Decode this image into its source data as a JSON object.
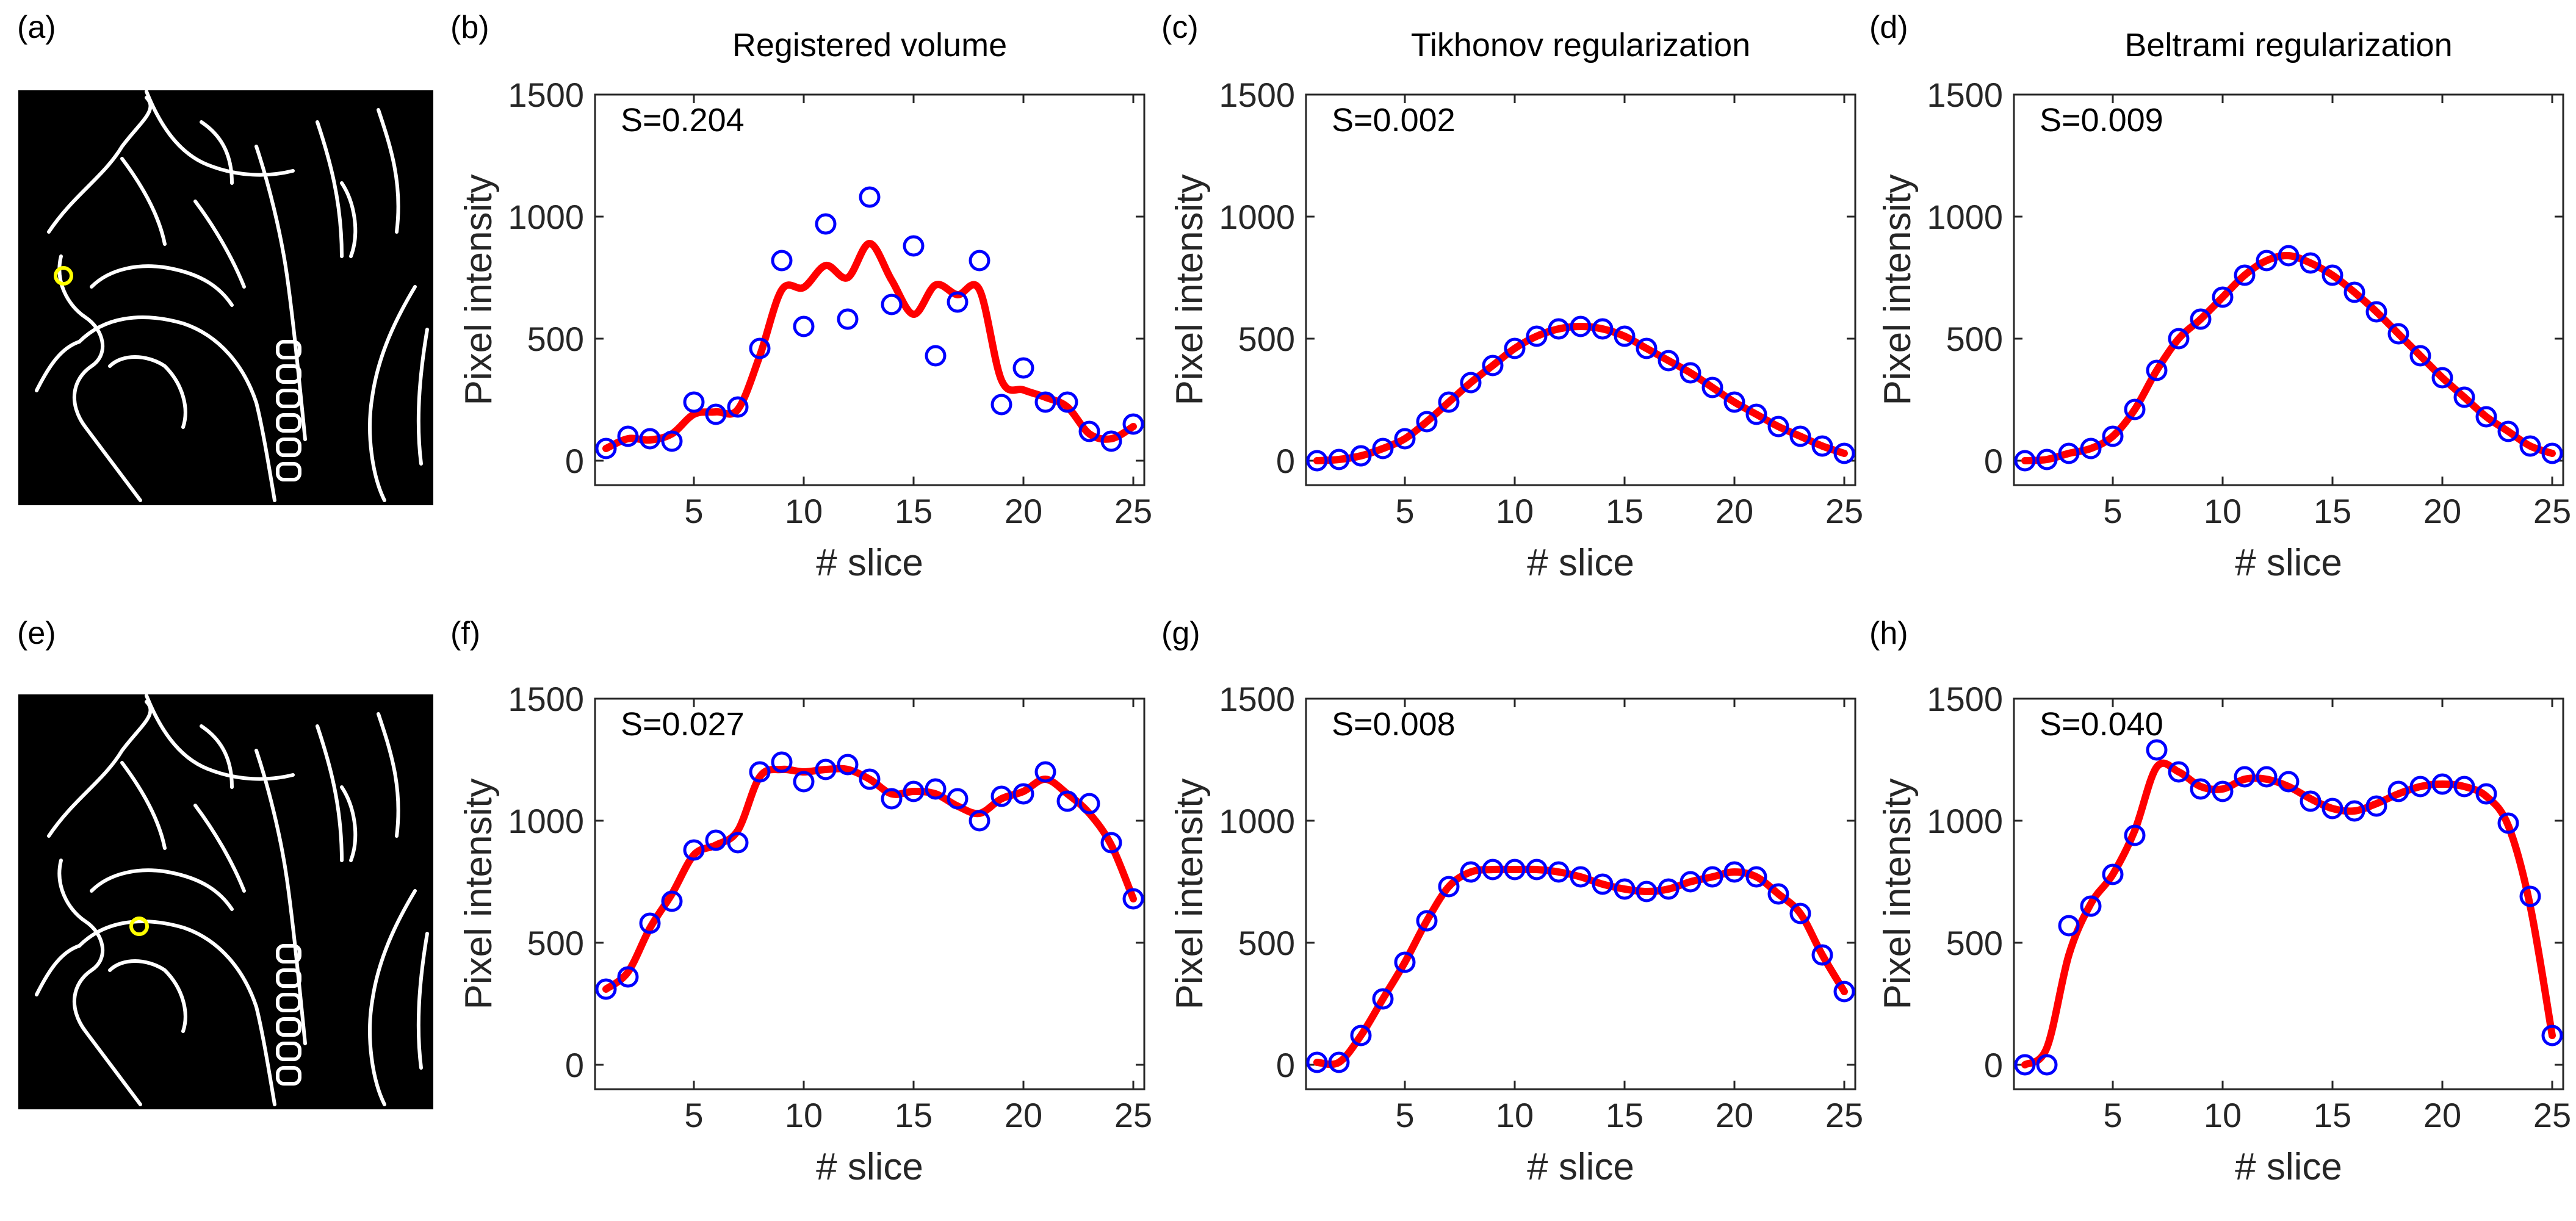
{
  "panels": {
    "a": "(a)",
    "b": "(b)",
    "c": "(c)",
    "d": "(d)",
    "e": "(e)",
    "f": "(f)",
    "g": "(g)",
    "h": "(h)"
  },
  "images": [
    {
      "description": "edge map of sagittal head slice",
      "marker_color": "#ffff00"
    },
    {
      "description": "edge map of sagittal head slice",
      "marker_color": "#ffff00"
    }
  ],
  "colors": {
    "fit_line": "#ff0000",
    "markers": "#0000ff",
    "image_bg": "#000000",
    "edges": "#ffffff"
  },
  "chart_data": [
    {
      "type": "scatter",
      "panel": "(b)",
      "title": "Registered volume",
      "annotation": "S=0.204",
      "xlabel": "# slice",
      "ylabel": "Pixel intensity",
      "xlim": [
        0.5,
        25.5
      ],
      "ylim": [
        -100,
        1500
      ],
      "xticks": [
        5,
        10,
        15,
        20,
        25
      ],
      "yticks": [
        0,
        500,
        1000,
        1500
      ],
      "x": [
        1,
        2,
        3,
        4,
        5,
        6,
        7,
        8,
        9,
        10,
        11,
        12,
        13,
        14,
        15,
        16,
        17,
        18,
        19,
        20,
        21,
        22,
        23,
        24,
        25
      ],
      "points": [
        50,
        100,
        90,
        80,
        240,
        190,
        220,
        460,
        820,
        550,
        970,
        580,
        1080,
        640,
        880,
        430,
        650,
        820,
        230,
        380,
        240,
        240,
        120,
        80,
        150
      ],
      "fit": [
        50,
        90,
        85,
        110,
        190,
        200,
        210,
        430,
        700,
        710,
        800,
        750,
        890,
        740,
        600,
        720,
        680,
        700,
        330,
        290,
        260,
        220,
        110,
        90,
        140
      ]
    },
    {
      "type": "scatter",
      "panel": "(c)",
      "title": "Tikhonov regularization",
      "annotation": "S=0.002",
      "xlabel": "# slice",
      "ylabel": "Pixel intensity",
      "xlim": [
        0.5,
        25.5
      ],
      "ylim": [
        -100,
        1500
      ],
      "xticks": [
        5,
        10,
        15,
        20,
        25
      ],
      "yticks": [
        0,
        500,
        1000,
        1500
      ],
      "x": [
        1,
        2,
        3,
        4,
        5,
        6,
        7,
        8,
        9,
        10,
        11,
        12,
        13,
        14,
        15,
        16,
        17,
        18,
        19,
        20,
        21,
        22,
        23,
        24,
        25
      ],
      "points": [
        0,
        5,
        20,
        50,
        90,
        160,
        240,
        320,
        390,
        460,
        510,
        540,
        550,
        540,
        510,
        460,
        410,
        360,
        300,
        240,
        190,
        140,
        100,
        60,
        30
      ],
      "fit": [
        0,
        5,
        20,
        50,
        90,
        160,
        240,
        320,
        390,
        460,
        510,
        540,
        550,
        540,
        510,
        460,
        410,
        360,
        300,
        240,
        190,
        140,
        100,
        60,
        30
      ]
    },
    {
      "type": "scatter",
      "panel": "(d)",
      "title": "Beltrami regularization",
      "annotation": "S=0.009",
      "xlabel": "# slice",
      "ylabel": "Pixel intensity",
      "xlim": [
        0.5,
        25.5
      ],
      "ylim": [
        -100,
        1500
      ],
      "xticks": [
        5,
        10,
        15,
        20,
        25
      ],
      "yticks": [
        0,
        500,
        1000,
        1500
      ],
      "x": [
        1,
        2,
        3,
        4,
        5,
        6,
        7,
        8,
        9,
        10,
        11,
        12,
        13,
        14,
        15,
        16,
        17,
        18,
        19,
        20,
        21,
        22,
        23,
        24,
        25
      ],
      "points": [
        0,
        5,
        30,
        50,
        100,
        210,
        370,
        500,
        580,
        670,
        760,
        820,
        840,
        810,
        760,
        690,
        610,
        520,
        430,
        340,
        260,
        180,
        120,
        60,
        30
      ],
      "fit": [
        0,
        5,
        30,
        50,
        100,
        210,
        370,
        500,
        580,
        670,
        760,
        820,
        840,
        810,
        760,
        690,
        610,
        520,
        430,
        340,
        260,
        180,
        120,
        60,
        30
      ]
    },
    {
      "type": "scatter",
      "panel": "(f)",
      "annotation": "S=0.027",
      "xlabel": "# slice",
      "ylabel": "Pixel intensity",
      "xlim": [
        0.5,
        25.5
      ],
      "ylim": [
        -100,
        1500
      ],
      "xticks": [
        5,
        10,
        15,
        20,
        25
      ],
      "yticks": [
        0,
        500,
        1000,
        1500
      ],
      "x": [
        1,
        2,
        3,
        4,
        5,
        6,
        7,
        8,
        9,
        10,
        11,
        12,
        13,
        14,
        15,
        16,
        17,
        18,
        19,
        20,
        21,
        22,
        23,
        24,
        25
      ],
      "points": [
        310,
        360,
        580,
        670,
        880,
        920,
        910,
        1200,
        1240,
        1160,
        1210,
        1230,
        1170,
        1090,
        1120,
        1130,
        1090,
        1000,
        1100,
        1110,
        1200,
        1080,
        1070,
        910,
        680
      ],
      "fit": [
        310,
        380,
        560,
        700,
        860,
        900,
        960,
        1180,
        1210,
        1200,
        1210,
        1210,
        1170,
        1110,
        1120,
        1110,
        1060,
        1030,
        1090,
        1120,
        1170,
        1110,
        1030,
        900,
        680
      ]
    },
    {
      "type": "scatter",
      "panel": "(g)",
      "annotation": "S=0.008",
      "xlabel": "# slice",
      "ylabel": "Pixel intensity",
      "xlim": [
        0.5,
        25.5
      ],
      "ylim": [
        -100,
        1500
      ],
      "xticks": [
        5,
        10,
        15,
        20,
        25
      ],
      "yticks": [
        0,
        500,
        1000,
        1500
      ],
      "x": [
        1,
        2,
        3,
        4,
        5,
        6,
        7,
        8,
        9,
        10,
        11,
        12,
        13,
        14,
        15,
        16,
        17,
        18,
        19,
        20,
        21,
        22,
        23,
        24,
        25
      ],
      "points": [
        10,
        10,
        120,
        270,
        420,
        590,
        730,
        790,
        800,
        800,
        800,
        790,
        770,
        740,
        720,
        710,
        720,
        750,
        770,
        790,
        770,
        700,
        620,
        450,
        300
      ],
      "fit": [
        10,
        10,
        120,
        270,
        420,
        590,
        730,
        790,
        800,
        800,
        800,
        790,
        770,
        740,
        720,
        710,
        720,
        750,
        770,
        790,
        770,
        700,
        620,
        450,
        300
      ]
    },
    {
      "type": "scatter",
      "panel": "(h)",
      "annotation": "S=0.040",
      "xlabel": "# slice",
      "ylabel": "Pixel intensity",
      "xlim": [
        0.5,
        25.5
      ],
      "ylim": [
        -100,
        1500
      ],
      "xticks": [
        5,
        10,
        15,
        20,
        25
      ],
      "yticks": [
        0,
        500,
        1000,
        1500
      ],
      "x": [
        1,
        2,
        3,
        4,
        5,
        6,
        7,
        8,
        9,
        10,
        11,
        12,
        13,
        14,
        15,
        16,
        17,
        18,
        19,
        20,
        21,
        22,
        23,
        24,
        25
      ],
      "points": [
        0,
        0,
        570,
        650,
        780,
        940,
        1290,
        1200,
        1130,
        1120,
        1180,
        1180,
        1160,
        1080,
        1050,
        1040,
        1060,
        1120,
        1140,
        1150,
        1140,
        1110,
        990,
        690,
        120
      ],
      "fit": [
        0,
        70,
        450,
        660,
        780,
        960,
        1220,
        1200,
        1140,
        1130,
        1170,
        1170,
        1140,
        1090,
        1050,
        1040,
        1070,
        1110,
        1140,
        1150,
        1140,
        1100,
        980,
        650,
        120
      ]
    }
  ]
}
